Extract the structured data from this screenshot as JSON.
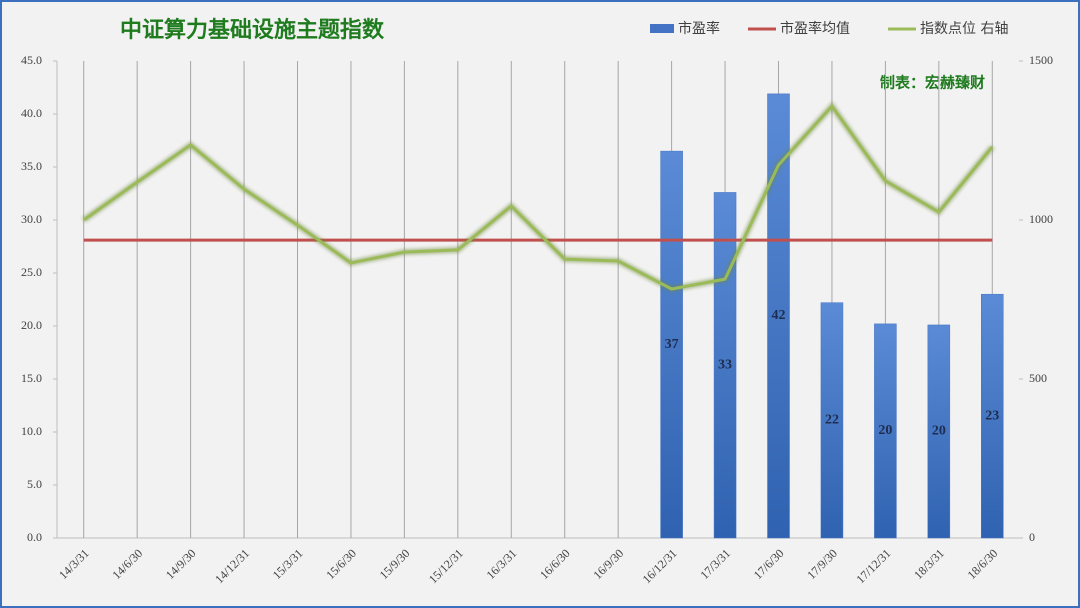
{
  "chart_data": {
    "type": "bar-line",
    "title": "中证算力基础设施主题指数",
    "annotation": "制表：宏赫臻财",
    "categories": [
      "14/3/31",
      "14/6/30",
      "14/9/30",
      "14/12/31",
      "15/3/31",
      "15/6/30",
      "15/9/30",
      "15/12/31",
      "16/3/31",
      "16/6/30",
      "16/9/30",
      "16/12/31",
      "17/3/31",
      "17/6/30",
      "17/9/30",
      "17/12/31",
      "18/3/31",
      "18/6/30"
    ],
    "series": [
      {
        "name": "市盈率",
        "kind": "bar",
        "color": "#4472c4",
        "values": [
          null,
          null,
          null,
          null,
          null,
          null,
          null,
          null,
          null,
          null,
          null,
          36.5,
          32.6,
          41.9,
          22.2,
          20.2,
          20.1,
          23.0
        ],
        "value_labels": [
          null,
          null,
          null,
          null,
          null,
          null,
          null,
          null,
          null,
          null,
          null,
          "37",
          "33",
          "42",
          "22",
          "20",
          "20",
          "23"
        ]
      },
      {
        "name": "市盈率均值",
        "kind": "line",
        "color": "#c0504d",
        "values": [
          28.1,
          28.1,
          28.1,
          28.1,
          28.1,
          28.1,
          28.1,
          28.1,
          28.1,
          28.1,
          28.1,
          28.1,
          28.1,
          28.1,
          28.1,
          28.1,
          28.1,
          28.1
        ]
      },
      {
        "name": "指数点位 右轴",
        "kind": "line",
        "axis": "y2",
        "color": "#9bbb59",
        "values": [
          1000,
          1119,
          1236,
          1097,
          984,
          865,
          899,
          906,
          1044,
          877,
          871,
          783,
          814,
          1173,
          1358,
          1123,
          1025,
          1230
        ]
      }
    ],
    "ylim": [
      0,
      45
    ],
    "yticks": [
      {
        "value": 0,
        "label": "0.0"
      },
      {
        "value": 5,
        "label": "5.0"
      },
      {
        "value": 10,
        "label": "10.0"
      },
      {
        "value": 15,
        "label": "15.0"
      },
      {
        "value": 20,
        "label": "20.0"
      },
      {
        "value": 25,
        "label": "25.0"
      },
      {
        "value": 30,
        "label": "30.0"
      },
      {
        "value": 35,
        "label": "35.0"
      },
      {
        "value": 40,
        "label": "40.0"
      },
      {
        "value": 45,
        "label": "45.0"
      }
    ],
    "y2lim": [
      0,
      1500
    ],
    "y2ticks": [
      0,
      500,
      1000,
      1500
    ],
    "grid": true
  }
}
